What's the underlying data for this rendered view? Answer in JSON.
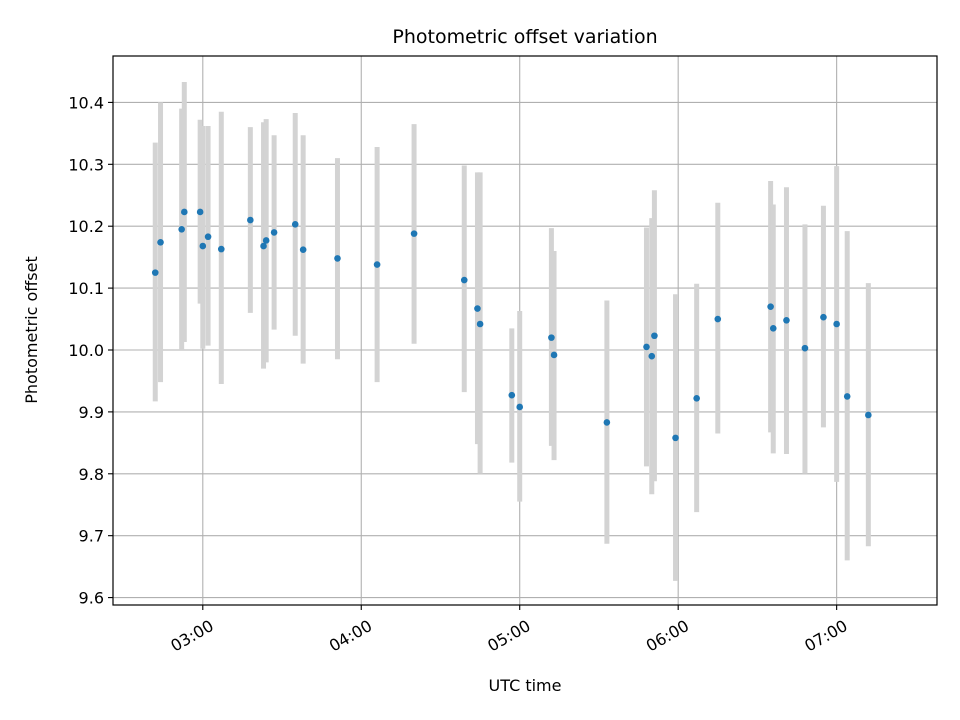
{
  "chart_data": {
    "type": "scatter",
    "title": "Photometric offset variation",
    "xlabel": "UTC time",
    "ylabel": "Photometric offset",
    "x_unit": "UTC hours",
    "xlim": [
      "02:26",
      "07:38"
    ],
    "ylim": [
      9.588,
      10.475
    ],
    "grid": true,
    "x_ticks": [
      "03:00",
      "04:00",
      "05:00",
      "06:00",
      "07:00"
    ],
    "y_ticks": [
      "9.6",
      "9.7",
      "9.8",
      "9.9",
      "10.0",
      "10.1",
      "10.2",
      "10.3",
      "10.4"
    ],
    "marker_color": "#1f77b4",
    "errorbar_color": "#d3d3d3",
    "points": [
      {
        "x": "02:42",
        "y": 10.125,
        "ylo": 9.917,
        "yhi": 10.335
      },
      {
        "x": "02:44",
        "y": 10.174,
        "ylo": 9.948,
        "yhi": 10.4
      },
      {
        "x": "02:52",
        "y": 10.195,
        "ylo": 10.0,
        "yhi": 10.39
      },
      {
        "x": "02:53",
        "y": 10.223,
        "ylo": 10.013,
        "yhi": 10.433
      },
      {
        "x": "02:59",
        "y": 10.223,
        "ylo": 10.075,
        "yhi": 10.372
      },
      {
        "x": "03:00",
        "y": 10.168,
        "ylo": 10.002,
        "yhi": 10.362
      },
      {
        "x": "03:02",
        "y": 10.183,
        "ylo": 10.007,
        "yhi": 10.362
      },
      {
        "x": "03:07",
        "y": 10.163,
        "ylo": 9.945,
        "yhi": 10.385
      },
      {
        "x": "03:18",
        "y": 10.21,
        "ylo": 10.06,
        "yhi": 10.36
      },
      {
        "x": "03:23",
        "y": 10.168,
        "ylo": 9.97,
        "yhi": 10.368
      },
      {
        "x": "03:24",
        "y": 10.177,
        "ylo": 9.98,
        "yhi": 10.373
      },
      {
        "x": "03:27",
        "y": 10.19,
        "ylo": 10.033,
        "yhi": 10.347
      },
      {
        "x": "03:35",
        "y": 10.203,
        "ylo": 10.023,
        "yhi": 10.383
      },
      {
        "x": "03:38",
        "y": 10.162,
        "ylo": 9.978,
        "yhi": 10.347
      },
      {
        "x": "03:51",
        "y": 10.148,
        "ylo": 9.985,
        "yhi": 10.31
      },
      {
        "x": "04:06",
        "y": 10.138,
        "ylo": 9.948,
        "yhi": 10.328
      },
      {
        "x": "04:20",
        "y": 10.188,
        "ylo": 10.01,
        "yhi": 10.365
      },
      {
        "x": "04:39",
        "y": 10.113,
        "ylo": 9.932,
        "yhi": 10.298
      },
      {
        "x": "04:44",
        "y": 10.067,
        "ylo": 9.848,
        "yhi": 10.287
      },
      {
        "x": "04:45",
        "y": 10.042,
        "ylo": 9.8,
        "yhi": 10.287
      },
      {
        "x": "04:57",
        "y": 9.927,
        "ylo": 9.818,
        "yhi": 10.035
      },
      {
        "x": "05:00",
        "y": 9.908,
        "ylo": 9.755,
        "yhi": 10.063
      },
      {
        "x": "05:12",
        "y": 10.02,
        "ylo": 9.845,
        "yhi": 10.197
      },
      {
        "x": "05:13",
        "y": 9.992,
        "ylo": 9.822,
        "yhi": 10.16
      },
      {
        "x": "05:33",
        "y": 9.883,
        "ylo": 9.687,
        "yhi": 10.08
      },
      {
        "x": "05:48",
        "y": 10.005,
        "ylo": 9.812,
        "yhi": 10.198
      },
      {
        "x": "05:50",
        "y": 9.99,
        "ylo": 9.767,
        "yhi": 10.213
      },
      {
        "x": "05:51",
        "y": 10.023,
        "ylo": 9.788,
        "yhi": 10.258
      },
      {
        "x": "05:59",
        "y": 9.858,
        "ylo": 9.627,
        "yhi": 10.09
      },
      {
        "x": "06:07",
        "y": 9.922,
        "ylo": 9.738,
        "yhi": 10.107
      },
      {
        "x": "06:15",
        "y": 10.05,
        "ylo": 9.865,
        "yhi": 10.238
      },
      {
        "x": "06:35",
        "y": 10.07,
        "ylo": 9.867,
        "yhi": 10.273
      },
      {
        "x": "06:36",
        "y": 10.035,
        "ylo": 9.833,
        "yhi": 10.235
      },
      {
        "x": "06:41",
        "y": 10.048,
        "ylo": 9.832,
        "yhi": 10.263
      },
      {
        "x": "06:48",
        "y": 10.003,
        "ylo": 9.8,
        "yhi": 10.203
      },
      {
        "x": "06:55",
        "y": 10.053,
        "ylo": 9.875,
        "yhi": 10.233
      },
      {
        "x": "07:00",
        "y": 10.042,
        "ylo": 9.787,
        "yhi": 10.297
      },
      {
        "x": "07:04",
        "y": 9.925,
        "ylo": 9.66,
        "yhi": 10.192
      },
      {
        "x": "07:12",
        "y": 9.895,
        "ylo": 9.683,
        "yhi": 10.108
      }
    ]
  }
}
